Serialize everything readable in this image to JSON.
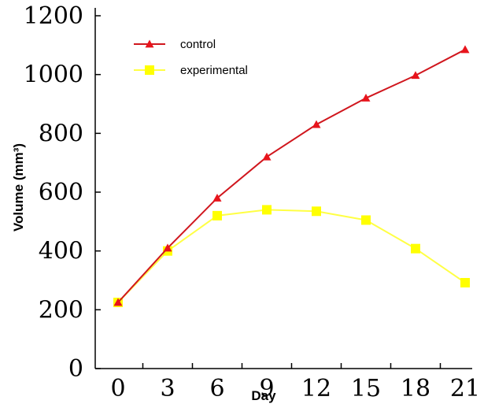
{
  "chart_data": {
    "type": "line",
    "x": [
      0,
      3,
      6,
      9,
      12,
      15,
      18,
      21
    ],
    "x_tick_labels": [
      "0",
      "3",
      "6",
      "9",
      "12",
      "15",
      "18",
      "21"
    ],
    "y_tick_labels": [
      "0",
      "200",
      "400",
      "600",
      "800",
      "1000",
      "1200"
    ],
    "xlabel": "Day",
    "ylabel": "Volume (mm³)",
    "ylim": [
      0,
      1200
    ],
    "grid": false,
    "legend_position": "top-left",
    "series": [
      {
        "name": "control",
        "marker": "triangle",
        "color": "#d0161d",
        "markerColor": "#e8141c",
        "values": [
          225,
          410,
          580,
          720,
          830,
          920,
          997,
          1085
        ]
      },
      {
        "name": "experimental",
        "marker": "square",
        "color": "#ffff44",
        "markerColor": "#ffff00",
        "values": [
          225,
          400,
          520,
          540,
          535,
          505,
          408,
          292
        ]
      }
    ]
  }
}
